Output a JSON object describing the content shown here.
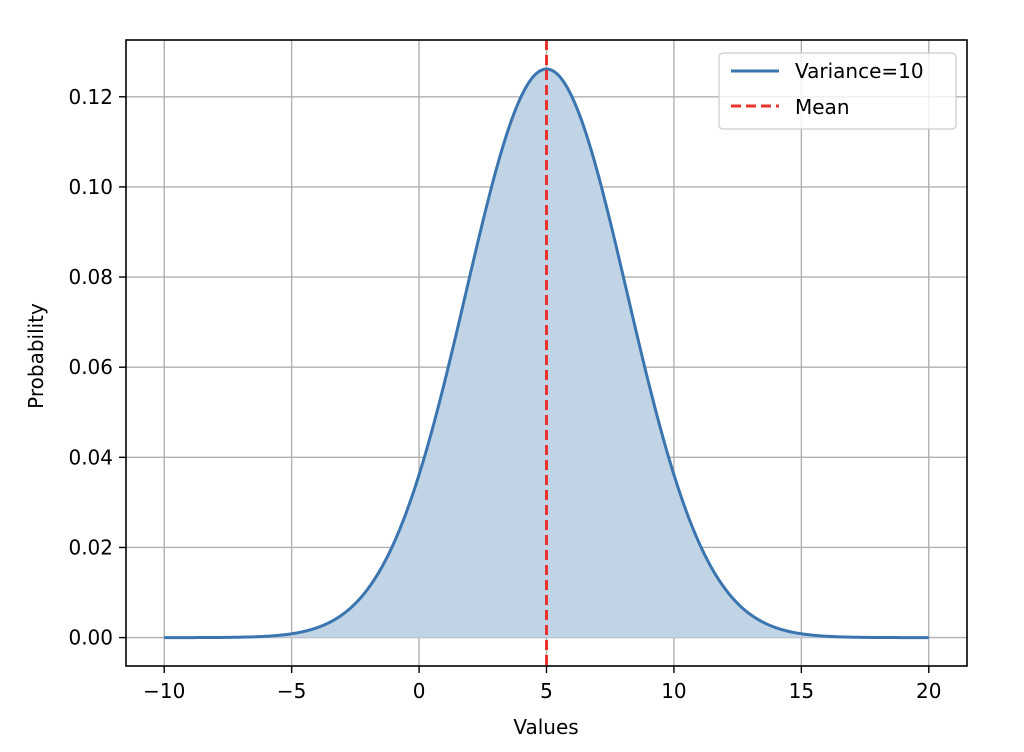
{
  "chart_data": {
    "type": "line",
    "title": "",
    "xlabel": "Values",
    "ylabel": "Probability",
    "xlim": [
      -11.5,
      21.5
    ],
    "ylim": [
      -0.0063,
      0.1326
    ],
    "xticks": [
      -10,
      -5,
      0,
      5,
      10,
      15,
      20
    ],
    "xtick_labels": [
      "−10",
      "−5",
      "0",
      "5",
      "10",
      "15",
      "20"
    ],
    "yticks": [
      0.0,
      0.02,
      0.04,
      0.06,
      0.08,
      0.1,
      0.12
    ],
    "ytick_labels": [
      "0.00",
      "0.02",
      "0.04",
      "0.06",
      "0.08",
      "0.10",
      "0.12"
    ],
    "grid": true,
    "legend_position": "upper-right",
    "series": [
      {
        "name": "Variance=10",
        "kind": "normal-pdf",
        "mean": 5,
        "variance": 10,
        "x_range": [
          -10,
          20
        ],
        "filled": true,
        "color": "#3a75b0",
        "fill_color": "#c1d4e6",
        "points": [
          {
            "x": -10,
            "y": 0.0
          },
          {
            "x": -5,
            "y": 0.0008
          },
          {
            "x": -2,
            "y": 0.0108
          },
          {
            "x": 0,
            "y": 0.0361
          },
          {
            "x": 2,
            "y": 0.0806
          },
          {
            "x": 3,
            "y": 0.1032
          },
          {
            "x": 4,
            "y": 0.1201
          },
          {
            "x": 5,
            "y": 0.1262
          },
          {
            "x": 6,
            "y": 0.1201
          },
          {
            "x": 7,
            "y": 0.1032
          },
          {
            "x": 8,
            "y": 0.0806
          },
          {
            "x": 10,
            "y": 0.0361
          },
          {
            "x": 12,
            "y": 0.0108
          },
          {
            "x": 15,
            "y": 0.0008
          },
          {
            "x": 20,
            "y": 0.0
          }
        ]
      },
      {
        "name": "Mean",
        "kind": "vertical-line",
        "x": 5,
        "style": "dashed",
        "color": "#e8342c"
      }
    ]
  }
}
